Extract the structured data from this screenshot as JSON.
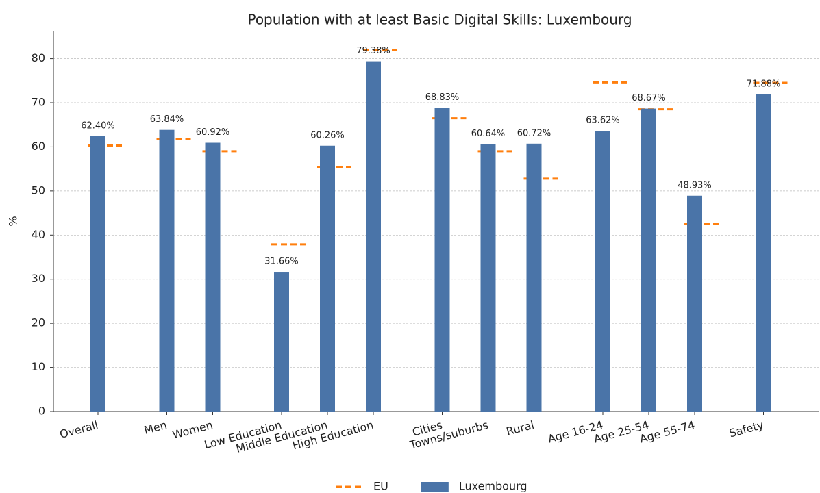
{
  "chart_data": {
    "type": "bar",
    "title": "Population with at least Basic Digital Skills: Luxembourg",
    "ylabel": "%",
    "categories": [
      "Overall",
      "Men",
      "Women",
      "Low Education",
      "Middle Education",
      "High Education",
      "Cities",
      "Towns/suburbs",
      "Rural",
      "Age 16-24",
      "Age 25-54",
      "Age 55-74",
      "Safety"
    ],
    "series": [
      {
        "name": "EU",
        "color": "#ff7f0e",
        "style": "dash",
        "values": [
          60.3,
          61.8,
          59.0,
          37.9,
          55.4,
          82.0,
          66.5,
          59.0,
          52.8,
          74.6,
          68.5,
          42.5,
          74.5
        ]
      },
      {
        "name": "Luxembourg",
        "color": "#4a74a8",
        "style": "bar",
        "values": [
          62.4,
          63.84,
          60.92,
          31.66,
          60.26,
          79.38,
          68.83,
          60.64,
          60.72,
          63.62,
          68.67,
          48.93,
          71.88
        ],
        "value_labels": [
          "62.40%",
          "63.84%",
          "60.92%",
          "31.66%",
          "60.26%",
          "79.38%",
          "68.83%",
          "60.64%",
          "60.72%",
          "63.62%",
          "68.67%",
          "48.93%",
          "71.88%"
        ]
      }
    ],
    "ylim": [
      0,
      86.3
    ],
    "yticks": [
      0,
      10,
      20,
      30,
      40,
      50,
      60,
      70,
      80
    ],
    "grid": true,
    "legend": "bottom"
  }
}
